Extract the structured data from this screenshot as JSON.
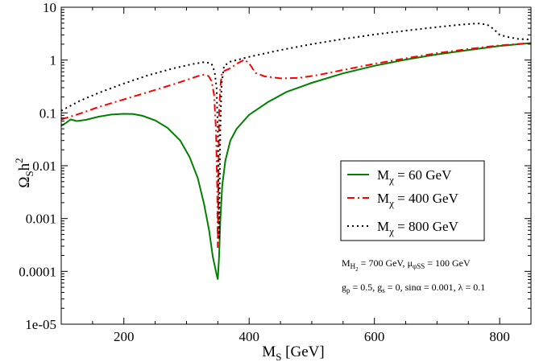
{
  "chart_data": {
    "type": "line",
    "title": "",
    "xlabel": {
      "main": "M",
      "sub": "S",
      "unit": " [GeV]"
    },
    "ylabel": {
      "main": "Ω",
      "sub": "S",
      "rest": "h",
      "sup": "2"
    },
    "xlim": [
      100,
      850
    ],
    "ylim_log10": [
      -5,
      1
    ],
    "yscale": "log",
    "x_ticks": [
      200,
      400,
      600,
      800
    ],
    "x_tick_labels": [
      "200",
      "400",
      "600",
      "800"
    ],
    "y_ticks_log10": [
      1,
      0,
      -1,
      -2,
      -3,
      -4,
      -5
    ],
    "y_tick_labels": [
      "10",
      "1",
      "0.1",
      "0.01",
      "0.001",
      "0.0001",
      "1e-05"
    ],
    "legend_position": "center-right",
    "legend": [
      {
        "prefix": "M",
        "sub": "χ",
        "text": " = 60 GeV"
      },
      {
        "prefix": "M",
        "sub": "χ",
        "text": " = 400 GeV"
      },
      {
        "prefix": "M",
        "sub": "χ",
        "text": " = 800 GeV"
      }
    ],
    "annotations": {
      "line1": {
        "a": "M",
        "a_sub": "H",
        "a_subsub": "2",
        "a_val": " = 700 GeV, ",
        "b": "μ",
        "b_sub": "φSS",
        "b_val": " = 100 GeV"
      },
      "line2": {
        "a": "g",
        "a_sub": "p",
        "a_val": " = 0.5, ",
        "b": "g",
        "b_sub": "s",
        "b_val": " = 0, sinα = 0.001, λ = 0.1"
      }
    },
    "series": [
      {
        "name": "M_chi = 60 GeV",
        "color": "#008000",
        "dash": "solid",
        "points": [
          [
            100,
            0.057
          ],
          [
            108,
            0.065
          ],
          [
            115,
            0.075
          ],
          [
            125,
            0.07
          ],
          [
            140,
            0.074
          ],
          [
            160,
            0.085
          ],
          [
            180,
            0.093
          ],
          [
            200,
            0.096
          ],
          [
            215,
            0.095
          ],
          [
            230,
            0.088
          ],
          [
            250,
            0.072
          ],
          [
            270,
            0.052
          ],
          [
            290,
            0.03
          ],
          [
            305,
            0.0145
          ],
          [
            318,
            0.0058
          ],
          [
            328,
            0.0019
          ],
          [
            336,
            0.0006
          ],
          [
            342,
            0.00019
          ],
          [
            347,
            0.0001
          ],
          [
            350,
            7e-05
          ],
          [
            352,
            0.00019
          ],
          [
            354,
            0.0009
          ],
          [
            357,
            0.0042
          ],
          [
            362,
            0.0125
          ],
          [
            370,
            0.03
          ],
          [
            380,
            0.05
          ],
          [
            400,
            0.092
          ],
          [
            430,
            0.16
          ],
          [
            460,
            0.25
          ],
          [
            500,
            0.37
          ],
          [
            550,
            0.56
          ],
          [
            600,
            0.78
          ],
          [
            650,
            1.02
          ],
          [
            700,
            1.28
          ],
          [
            750,
            1.55
          ],
          [
            800,
            1.85
          ],
          [
            850,
            2.1
          ]
        ]
      },
      {
        "name": "M_chi = 400 GeV",
        "color": "#ff0000",
        "dash": "dashdot",
        "points": [
          [
            100,
            0.075
          ],
          [
            130,
            0.097
          ],
          [
            160,
            0.13
          ],
          [
            200,
            0.18
          ],
          [
            240,
            0.25
          ],
          [
            280,
            0.35
          ],
          [
            310,
            0.46
          ],
          [
            325,
            0.53
          ],
          [
            335,
            0.5
          ],
          [
            340,
            0.4
          ],
          [
            344,
            0.22
          ],
          [
            347,
            0.05
          ],
          [
            349,
            0.004
          ],
          [
            350,
            0.00028
          ],
          [
            351,
            0.004
          ],
          [
            352,
            0.1
          ],
          [
            354,
            0.3
          ],
          [
            356,
            0.52
          ],
          [
            360,
            0.62
          ],
          [
            370,
            0.7
          ],
          [
            380,
            0.85
          ],
          [
            393,
            1.02
          ],
          [
            402,
            0.8
          ],
          [
            410,
            0.57
          ],
          [
            425,
            0.49
          ],
          [
            450,
            0.45
          ],
          [
            480,
            0.46
          ],
          [
            510,
            0.52
          ],
          [
            550,
            0.65
          ],
          [
            600,
            0.85
          ],
          [
            650,
            1.08
          ],
          [
            700,
            1.35
          ],
          [
            750,
            1.62
          ],
          [
            800,
            1.9
          ],
          [
            850,
            2.1
          ]
        ]
      },
      {
        "name": "M_chi = 800 GeV",
        "color": "#000000",
        "dash": "dotted",
        "points": [
          [
            100,
            0.11
          ],
          [
            130,
            0.17
          ],
          [
            160,
            0.24
          ],
          [
            200,
            0.36
          ],
          [
            240,
            0.52
          ],
          [
            280,
            0.7
          ],
          [
            310,
            0.84
          ],
          [
            330,
            0.92
          ],
          [
            340,
            0.85
          ],
          [
            345,
            0.6
          ],
          [
            348,
            0.3
          ],
          [
            350,
            0.05
          ],
          [
            352,
            0.0004
          ],
          [
            354,
            0.05
          ],
          [
            356,
            0.35
          ],
          [
            360,
            0.78
          ],
          [
            370,
            0.93
          ],
          [
            400,
            1.15
          ],
          [
            450,
            1.55
          ],
          [
            500,
            2.0
          ],
          [
            550,
            2.5
          ],
          [
            600,
            3.05
          ],
          [
            650,
            3.6
          ],
          [
            700,
            4.2
          ],
          [
            740,
            4.7
          ],
          [
            765,
            4.95
          ],
          [
            780,
            4.7
          ],
          [
            790,
            3.9
          ],
          [
            800,
            3.0
          ],
          [
            815,
            2.7
          ],
          [
            830,
            2.5
          ],
          [
            850,
            2.45
          ]
        ]
      }
    ]
  }
}
